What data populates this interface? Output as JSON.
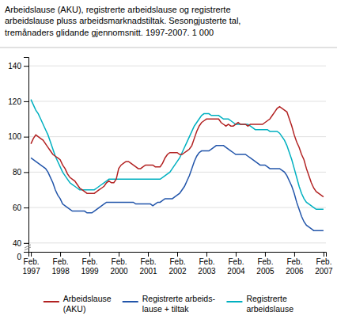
{
  "chart_data": {
    "type": "line",
    "title": "Arbeidslause (AKU), registrerte arbeidslause og registrerte\narbeidslause pluss arbeidsmarknadstiltak. Sesongjusterte tal,\ntremånaders glidande gjennomsnitt. 1997-2007. 1 000",
    "categories": [
      "Feb.\n1997",
      null,
      null,
      null,
      null,
      null,
      null,
      null,
      null,
      null,
      null,
      null,
      "Feb.\n1998",
      null,
      null,
      null,
      null,
      null,
      null,
      null,
      null,
      null,
      null,
      null,
      "Feb.\n1999",
      null,
      null,
      null,
      null,
      null,
      null,
      null,
      null,
      null,
      null,
      null,
      "Feb.\n2000",
      null,
      null,
      null,
      null,
      null,
      null,
      null,
      null,
      null,
      null,
      null,
      "Feb.\n2001",
      null,
      null,
      null,
      null,
      null,
      null,
      null,
      null,
      null,
      null,
      null,
      "Feb.\n2002",
      null,
      null,
      null,
      null,
      null,
      null,
      null,
      null,
      null,
      null,
      null,
      "Feb.\n2003",
      null,
      null,
      null,
      null,
      null,
      null,
      null,
      null,
      null,
      null,
      null,
      "Feb.\n2004",
      null,
      null,
      null,
      null,
      null,
      null,
      null,
      null,
      null,
      null,
      null,
      "Feb.\n2005",
      null,
      null,
      null,
      null,
      null,
      null,
      null,
      null,
      null,
      null,
      null,
      "Feb.\n2006",
      null,
      null,
      null,
      null,
      null,
      null,
      null,
      null,
      null,
      null,
      null,
      "Feb.\n2007"
    ],
    "series": [
      {
        "name": "Arbeidslause\n(AKU)",
        "color": "#b22222",
        "values": [
          96,
          99,
          101,
          100,
          99,
          98,
          96,
          94,
          92,
          90,
          89,
          88,
          87,
          84,
          82,
          79,
          77,
          76,
          75,
          73,
          71,
          70,
          69,
          68,
          68,
          68,
          68,
          69,
          70,
          71,
          72,
          74,
          75,
          74,
          74,
          76,
          82,
          84,
          85,
          86,
          86,
          85,
          84,
          83,
          82,
          82,
          83,
          84,
          84,
          84,
          84,
          83,
          83,
          83,
          85,
          88,
          90,
          91,
          91,
          91,
          91,
          90,
          90,
          91,
          92,
          93,
          95,
          99,
          103,
          106,
          108,
          109,
          110,
          110,
          110,
          110,
          110,
          110,
          108,
          107,
          106,
          107,
          106,
          106,
          107,
          108,
          107,
          107,
          107,
          106,
          107,
          107,
          107,
          107,
          107,
          107,
          108,
          109,
          110,
          112,
          114,
          116,
          117,
          116,
          115,
          114,
          110,
          106,
          101,
          97,
          94,
          90,
          87,
          82,
          78,
          74,
          71,
          69,
          68,
          67,
          66
        ]
      },
      {
        "name": "Registrerte arbeids-\nlause + tiltak",
        "color": "#2255aa",
        "values": [
          88,
          87,
          86,
          85,
          84,
          83,
          82,
          80,
          77,
          74,
          70,
          67,
          65,
          62,
          61,
          60,
          59,
          58,
          58,
          58,
          58,
          58,
          58,
          57,
          57,
          57,
          58,
          59,
          60,
          61,
          62,
          63,
          63,
          63,
          63,
          63,
          63,
          63,
          63,
          63,
          63,
          63,
          63,
          62,
          62,
          62,
          62,
          62,
          62,
          62,
          61,
          62,
          63,
          63,
          64,
          65,
          65,
          65,
          65,
          66,
          67,
          68,
          70,
          72,
          75,
          78,
          82,
          86,
          89,
          91,
          92,
          92,
          92,
          92,
          93,
          94,
          95,
          95,
          95,
          95,
          94,
          93,
          92,
          91,
          90,
          90,
          90,
          90,
          90,
          89,
          88,
          87,
          86,
          85,
          84,
          84,
          84,
          83,
          82,
          82,
          82,
          82,
          82,
          81,
          80,
          78,
          75,
          72,
          68,
          63,
          59,
          55,
          52,
          50,
          49,
          48,
          47,
          47,
          47,
          47,
          47
        ]
      },
      {
        "name": "Registrerte\narbeidslause",
        "color": "#00b0c0",
        "values": [
          121,
          118,
          115,
          113,
          110,
          107,
          104,
          101,
          97,
          93,
          89,
          86,
          83,
          80,
          78,
          76,
          74,
          73,
          72,
          71,
          70,
          70,
          70,
          70,
          70,
          70,
          70,
          71,
          72,
          73,
          74,
          75,
          76,
          76,
          76,
          76,
          76,
          76,
          76,
          76,
          76,
          76,
          76,
          76,
          76,
          76,
          76,
          76,
          76,
          76,
          76,
          76,
          76,
          76,
          77,
          78,
          79,
          80,
          82,
          84,
          86,
          88,
          91,
          94,
          97,
          100,
          103,
          106,
          108,
          110,
          112,
          113,
          113,
          113,
          112,
          112,
          112,
          112,
          111,
          110,
          110,
          110,
          109,
          108,
          107,
          107,
          107,
          107,
          107,
          107,
          106,
          105,
          104,
          104,
          104,
          104,
          104,
          104,
          103,
          103,
          103,
          103,
          102,
          100,
          98,
          95,
          91,
          87,
          82,
          77,
          72,
          68,
          65,
          63,
          62,
          61,
          60,
          59,
          59,
          59,
          59
        ]
      }
    ],
    "ylim": [
      35,
      145
    ],
    "yticks": [
      40,
      60,
      80,
      100,
      120,
      140
    ],
    "grid": true,
    "legend": "bottom",
    "annotations": [
      {
        "text": "0"
      }
    ]
  }
}
